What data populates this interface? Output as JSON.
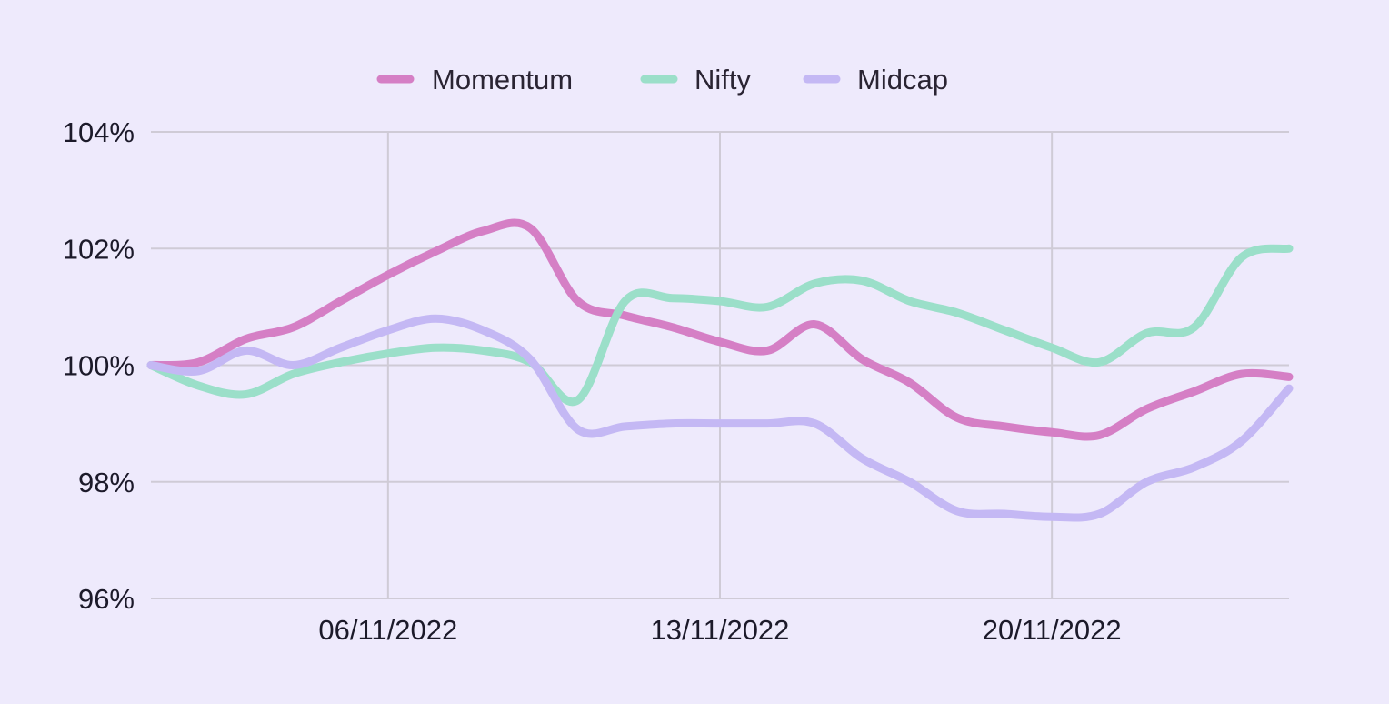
{
  "chart_data": {
    "type": "line",
    "x_labels": [
      "06/11/2022",
      "13/11/2022",
      "20/11/2022"
    ],
    "x_label_dates": [
      "2022-11-06",
      "2022-11-13",
      "2022-11-20"
    ],
    "xlim": [
      "2022-11-01",
      "2022-11-25"
    ],
    "y_ticks": [
      "96%",
      "98%",
      "100%",
      "102%",
      "104%"
    ],
    "ylim": [
      96,
      104
    ],
    "grid": true,
    "legend_position": "top",
    "series": [
      {
        "name": "Momentum",
        "color": "#d57fc5",
        "points": [
          [
            "2022-11-01",
            100.0
          ],
          [
            "2022-11-02",
            100.05
          ],
          [
            "2022-11-03",
            100.45
          ],
          [
            "2022-11-04",
            100.65
          ],
          [
            "2022-11-05",
            101.1
          ],
          [
            "2022-11-06",
            101.55
          ],
          [
            "2022-11-07",
            101.95
          ],
          [
            "2022-11-08",
            102.3
          ],
          [
            "2022-11-09",
            102.35
          ],
          [
            "2022-11-10",
            101.1
          ],
          [
            "2022-11-11",
            100.85
          ],
          [
            "2022-11-12",
            100.65
          ],
          [
            "2022-11-13",
            100.4
          ],
          [
            "2022-11-14",
            100.25
          ],
          [
            "2022-11-15",
            100.7
          ],
          [
            "2022-11-16",
            100.1
          ],
          [
            "2022-11-17",
            99.7
          ],
          [
            "2022-11-18",
            99.1
          ],
          [
            "2022-11-19",
            98.95
          ],
          [
            "2022-11-20",
            98.85
          ],
          [
            "2022-11-21",
            98.8
          ],
          [
            "2022-11-22",
            99.25
          ],
          [
            "2022-11-23",
            99.55
          ],
          [
            "2022-11-24",
            99.85
          ],
          [
            "2022-11-25",
            99.8
          ]
        ]
      },
      {
        "name": "Nifty",
        "color": "#9bdfc9",
        "points": [
          [
            "2022-11-01",
            100.0
          ],
          [
            "2022-11-02",
            99.65
          ],
          [
            "2022-11-03",
            99.5
          ],
          [
            "2022-11-04",
            99.85
          ],
          [
            "2022-11-05",
            100.05
          ],
          [
            "2022-11-06",
            100.2
          ],
          [
            "2022-11-07",
            100.3
          ],
          [
            "2022-11-08",
            100.25
          ],
          [
            "2022-11-09",
            100.05
          ],
          [
            "2022-11-10",
            99.4
          ],
          [
            "2022-11-11",
            101.1
          ],
          [
            "2022-11-12",
            101.15
          ],
          [
            "2022-11-13",
            101.1
          ],
          [
            "2022-11-14",
            101.0
          ],
          [
            "2022-11-15",
            101.4
          ],
          [
            "2022-11-16",
            101.45
          ],
          [
            "2022-11-17",
            101.1
          ],
          [
            "2022-11-18",
            100.9
          ],
          [
            "2022-11-19",
            100.6
          ],
          [
            "2022-11-20",
            100.3
          ],
          [
            "2022-11-21",
            100.05
          ],
          [
            "2022-11-22",
            100.55
          ],
          [
            "2022-11-23",
            100.65
          ],
          [
            "2022-11-24",
            101.85
          ],
          [
            "2022-11-25",
            102.0
          ]
        ]
      },
      {
        "name": "Midcap",
        "color": "#c4b8f4",
        "points": [
          [
            "2022-11-01",
            100.0
          ],
          [
            "2022-11-02",
            99.9
          ],
          [
            "2022-11-03",
            100.25
          ],
          [
            "2022-11-04",
            100.0
          ],
          [
            "2022-11-05",
            100.3
          ],
          [
            "2022-11-06",
            100.6
          ],
          [
            "2022-11-07",
            100.8
          ],
          [
            "2022-11-08",
            100.6
          ],
          [
            "2022-11-09",
            100.1
          ],
          [
            "2022-11-10",
            98.9
          ],
          [
            "2022-11-11",
            98.95
          ],
          [
            "2022-11-12",
            99.0
          ],
          [
            "2022-11-13",
            99.0
          ],
          [
            "2022-11-14",
            99.0
          ],
          [
            "2022-11-15",
            99.0
          ],
          [
            "2022-11-16",
            98.4
          ],
          [
            "2022-11-17",
            98.0
          ],
          [
            "2022-11-18",
            97.5
          ],
          [
            "2022-11-19",
            97.45
          ],
          [
            "2022-11-20",
            97.4
          ],
          [
            "2022-11-21",
            97.45
          ],
          [
            "2022-11-22",
            98.0
          ],
          [
            "2022-11-23",
            98.25
          ],
          [
            "2022-11-24",
            98.7
          ],
          [
            "2022-11-25",
            99.6
          ]
        ]
      }
    ]
  }
}
